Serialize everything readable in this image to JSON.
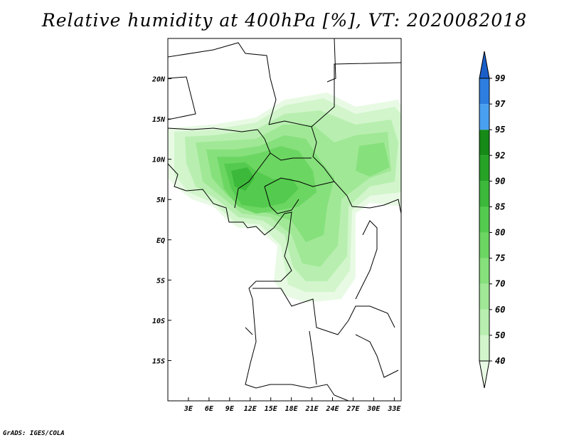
{
  "title": "Relative humidity at 400hPa [%], VT: 2020082018",
  "credit": "GrADS: IGES/COLA",
  "map": {
    "lon_range": [
      0,
      34
    ],
    "lat_range": [
      -20,
      25
    ],
    "lon_ticks": [
      {
        "value": 3,
        "label": "3E"
      },
      {
        "value": 6,
        "label": "6E"
      },
      {
        "value": 9,
        "label": "9E"
      },
      {
        "value": 12,
        "label": "12E"
      },
      {
        "value": 15,
        "label": "15E"
      },
      {
        "value": 18,
        "label": "18E"
      },
      {
        "value": 21,
        "label": "21E"
      },
      {
        "value": 24,
        "label": "24E"
      },
      {
        "value": 27,
        "label": "27E"
      },
      {
        "value": 30,
        "label": "30E"
      },
      {
        "value": 33,
        "label": "33E"
      }
    ],
    "lat_ticks": [
      {
        "value": 20,
        "label": "20N"
      },
      {
        "value": 15,
        "label": "15N"
      },
      {
        "value": 10,
        "label": "10N"
      },
      {
        "value": 5,
        "label": "5N"
      },
      {
        "value": 0,
        "label": "EQ"
      },
      {
        "value": -5,
        "label": "5S"
      },
      {
        "value": -10,
        "label": "10S"
      },
      {
        "value": -15,
        "label": "15S"
      }
    ]
  },
  "colorbar": {
    "levels": [
      "40",
      "50",
      "60",
      "70",
      "75",
      "80",
      "85",
      "90",
      "92",
      "95",
      "97",
      "99"
    ],
    "colors": [
      "#e8fae4",
      "#d2f5cc",
      "#b8efb0",
      "#a0e896",
      "#86e07c",
      "#6cd662",
      "#54cb4e",
      "#3cb83a",
      "#26a226",
      "#168a16",
      "#4aa0f0",
      "#2e7ee0",
      "#1a5ec8"
    ]
  }
}
